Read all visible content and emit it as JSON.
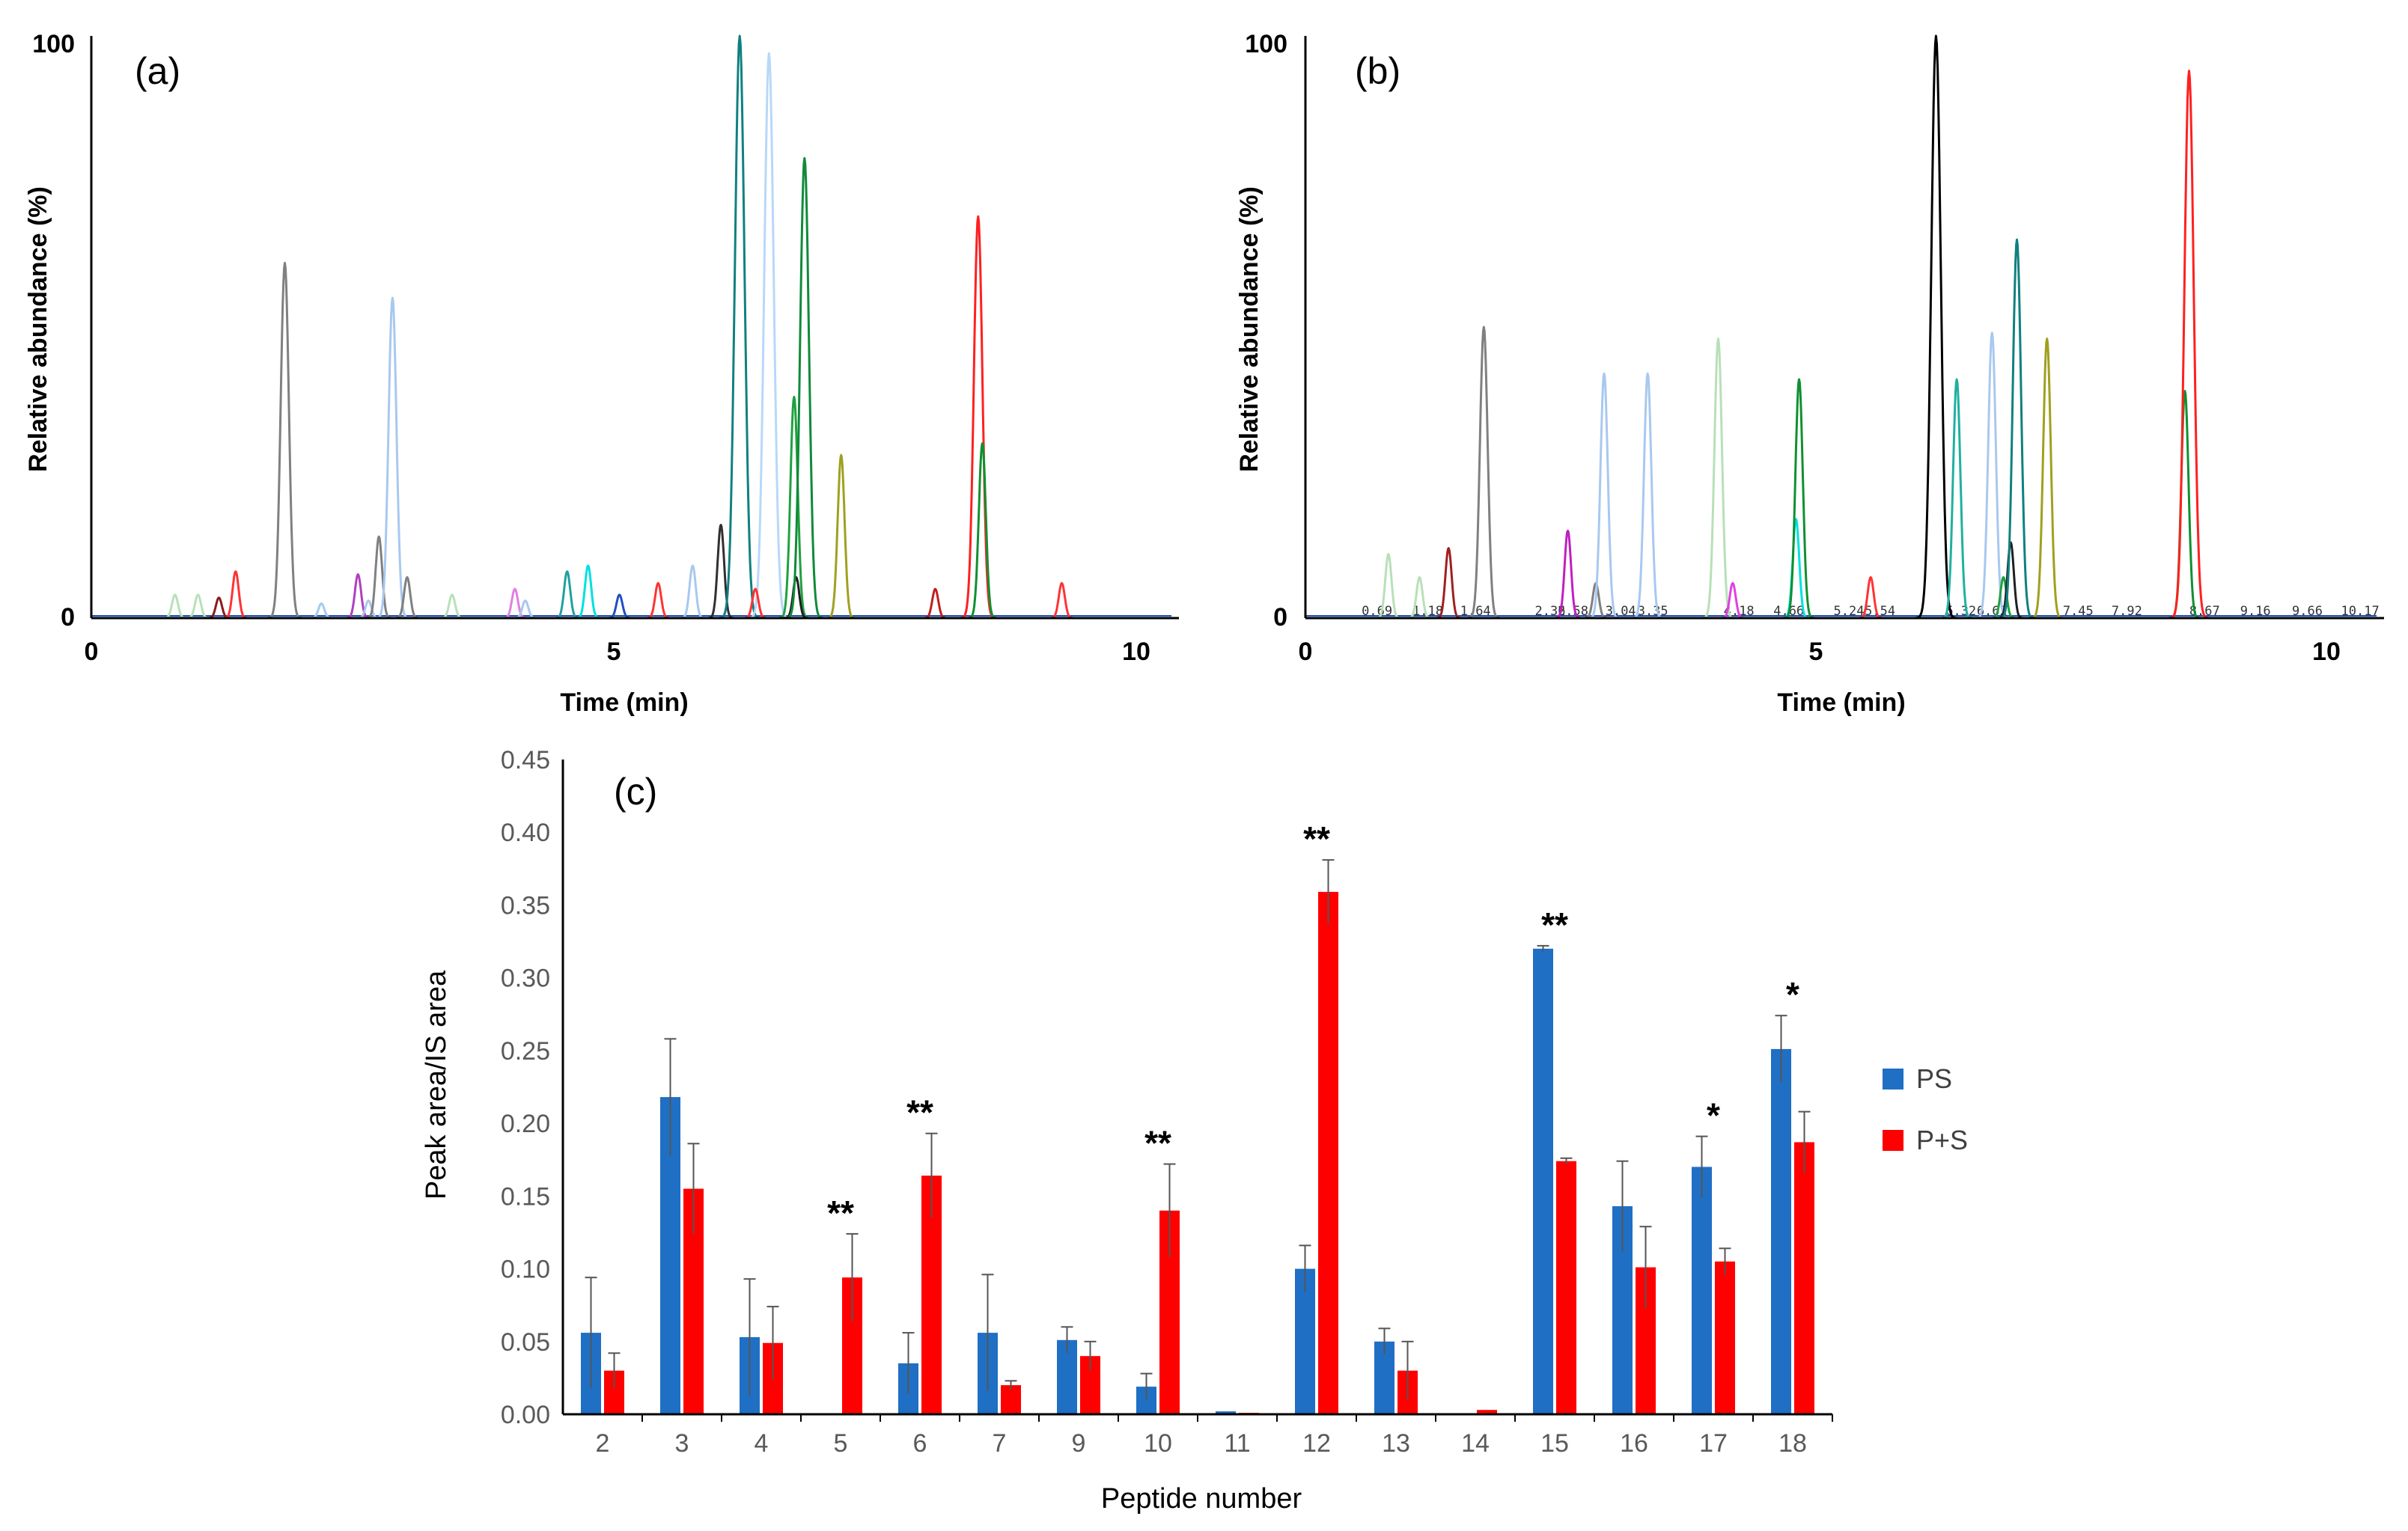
{
  "chart_data": [
    {
      "type": "line",
      "panel_label": "(a)",
      "title": "",
      "xlabel": "Time (min)",
      "ylabel": "Relative abundance (%)",
      "xlim": [
        0,
        10.4
      ],
      "ylim": [
        0,
        100
      ],
      "x_ticks": [
        "0",
        "5",
        "10"
      ],
      "y_ticks": [
        "0",
        "100"
      ],
      "peaks": [
        {
          "color": "#b8e0b8",
          "rt": 0.8,
          "height": 4
        },
        {
          "color": "#b8e0b8",
          "rt": 1.02,
          "height": 4
        },
        {
          "color": "#8c1a1a",
          "rt": 1.22,
          "height": 3.5
        },
        {
          "color": "#ff3333",
          "rt": 1.38,
          "height": 8
        },
        {
          "color": "#808080",
          "rt": 1.85,
          "height": 61
        },
        {
          "color": "#a8c8f0",
          "rt": 2.2,
          "height": 2.5
        },
        {
          "color": "#b040c0",
          "rt": 2.55,
          "height": 7.5
        },
        {
          "color": "#a8c8f0",
          "rt": 2.65,
          "height": 3
        },
        {
          "color": "#808080",
          "rt": 2.75,
          "height": 14
        },
        {
          "color": "#a8c8f0",
          "rt": 2.88,
          "height": 55
        },
        {
          "color": "#808080",
          "rt": 3.02,
          "height": 7
        },
        {
          "color": "#b8e0b8",
          "rt": 3.45,
          "height": 4
        },
        {
          "color": "#e080e0",
          "rt": 4.05,
          "height": 5
        },
        {
          "color": "#a8c8f0",
          "rt": 4.15,
          "height": 3
        },
        {
          "color": "#20a0a0",
          "rt": 4.55,
          "height": 8
        },
        {
          "color": "#00e0e0",
          "rt": 4.75,
          "height": 9
        },
        {
          "color": "#2050c0",
          "rt": 5.05,
          "height": 4
        },
        {
          "color": "#ff3333",
          "rt": 5.42,
          "height": 6
        },
        {
          "color": "#a8c8f0",
          "rt": 5.75,
          "height": 9
        },
        {
          "color": "#303030",
          "rt": 6.02,
          "height": 16
        },
        {
          "color": "#108080",
          "rt": 6.2,
          "height": 100
        },
        {
          "color": "#b8d8f8",
          "rt": 6.48,
          "height": 97
        },
        {
          "color": "#ff3333",
          "rt": 6.35,
          "height": 5
        },
        {
          "color": "#20a040",
          "rt": 6.72,
          "height": 38
        },
        {
          "color": "#202020",
          "rt": 6.74,
          "height": 7
        },
        {
          "color": "#108a3a",
          "rt": 6.82,
          "height": 79
        },
        {
          "color": "#a0a020",
          "rt": 7.17,
          "height": 28
        },
        {
          "color": "#c02020",
          "rt": 8.07,
          "height": 5
        },
        {
          "color": "#ff2020",
          "rt": 8.48,
          "height": 69
        },
        {
          "color": "#109030",
          "rt": 8.52,
          "height": 30
        },
        {
          "color": "#ff3333",
          "rt": 9.28,
          "height": 6
        }
      ]
    },
    {
      "type": "line",
      "panel_label": "(b)",
      "title": "",
      "xlabel": "Time (min)",
      "ylabel": "Relative abundance (%)",
      "xlim": [
        0,
        10.4
      ],
      "ylim": [
        0,
        100
      ],
      "x_ticks": [
        "0",
        "5",
        "10"
      ],
      "y_ticks": [
        "0",
        "100"
      ],
      "rt_labels": [
        "0.69",
        "1.18",
        "1.64",
        "2.36",
        "2.58",
        "3.04",
        "3.35",
        "4.18",
        "4.66",
        "5.24",
        "5.54",
        "6.32",
        "6.62",
        "7.45",
        "7.92",
        "8.67",
        "9.16",
        "9.66",
        "10.17"
      ],
      "peaks": [
        {
          "color": "#b8e0b8",
          "rt": 0.8,
          "height": 11
        },
        {
          "color": "#b8e0b8",
          "rt": 1.1,
          "height": 7
        },
        {
          "color": "#a02020",
          "rt": 1.38,
          "height": 12
        },
        {
          "color": "#808080",
          "rt": 1.72,
          "height": 50
        },
        {
          "color": "#c020c0",
          "rt": 2.53,
          "height": 15
        },
        {
          "color": "#808080",
          "rt": 2.8,
          "height": 6
        },
        {
          "color": "#a8c8f0",
          "rt": 2.88,
          "height": 42
        },
        {
          "color": "#a8c8f0",
          "rt": 3.3,
          "height": 42
        },
        {
          "color": "#b8e0b8",
          "rt": 3.98,
          "height": 48
        },
        {
          "color": "#e040e0",
          "rt": 4.12,
          "height": 6
        },
        {
          "color": "#00e0e0",
          "rt": 4.73,
          "height": 17
        },
        {
          "color": "#109030",
          "rt": 4.76,
          "height": 41
        },
        {
          "color": "#ff3333",
          "rt": 5.45,
          "height": 7
        },
        {
          "color": "#000000",
          "rt": 6.08,
          "height": 100
        },
        {
          "color": "#20b0a0",
          "rt": 6.28,
          "height": 41
        },
        {
          "color": "#a8c8f0",
          "rt": 6.62,
          "height": 49
        },
        {
          "color": "#20a040",
          "rt": 6.73,
          "height": 7
        },
        {
          "color": "#202020",
          "rt": 6.8,
          "height": 13
        },
        {
          "color": "#108080",
          "rt": 6.86,
          "height": 65
        },
        {
          "color": "#a0a020",
          "rt": 7.15,
          "height": 48
        },
        {
          "color": "#109030",
          "rt": 8.48,
          "height": 39
        },
        {
          "color": "#ff2020",
          "rt": 8.52,
          "height": 94
        }
      ]
    },
    {
      "type": "bar",
      "panel_label": "(c)",
      "title": "",
      "xlabel": "Peptide number",
      "ylabel": "Peak area/IS area",
      "ylim": [
        0,
        0.45
      ],
      "y_ticks": [
        "0.00",
        "0.05",
        "0.10",
        "0.15",
        "0.20",
        "0.25",
        "0.30",
        "0.35",
        "0.40",
        "0.45"
      ],
      "categories": [
        "2",
        "3",
        "4",
        "5",
        "6",
        "7",
        "9",
        "10",
        "11",
        "12",
        "13",
        "14",
        "15",
        "16",
        "17",
        "18"
      ],
      "legend_position": "right",
      "series": [
        {
          "name": "PS",
          "color": "#1f6fc5",
          "values": [
            0.056,
            0.218,
            0.053,
            0.0,
            0.035,
            0.056,
            0.051,
            0.019,
            0.002,
            0.1,
            0.05,
            0.0,
            0.32,
            0.143,
            0.17,
            0.251
          ],
          "errors": [
            0.038,
            0.04,
            0.04,
            0.0,
            0.021,
            0.04,
            0.009,
            0.009,
            0.0,
            0.016,
            0.009,
            0.0,
            0.002,
            0.031,
            0.021,
            0.023
          ]
        },
        {
          "name": "P+S",
          "color": "#ff0000",
          "values": [
            0.03,
            0.155,
            0.049,
            0.094,
            0.164,
            0.02,
            0.04,
            0.14,
            0.001,
            0.359,
            0.03,
            0.003,
            0.174,
            0.101,
            0.105,
            0.187
          ],
          "errors": [
            0.012,
            0.031,
            0.025,
            0.03,
            0.029,
            0.003,
            0.01,
            0.032,
            0.0,
            0.022,
            0.02,
            0.0,
            0.002,
            0.028,
            0.009,
            0.021
          ]
        }
      ],
      "annotations": [
        {
          "category": "5",
          "text": "**"
        },
        {
          "category": "6",
          "text": "**"
        },
        {
          "category": "10",
          "text": "**"
        },
        {
          "category": "12",
          "text": "**"
        },
        {
          "category": "15",
          "text": "**"
        },
        {
          "category": "17",
          "text": "*"
        },
        {
          "category": "18",
          "text": "*"
        }
      ]
    }
  ]
}
